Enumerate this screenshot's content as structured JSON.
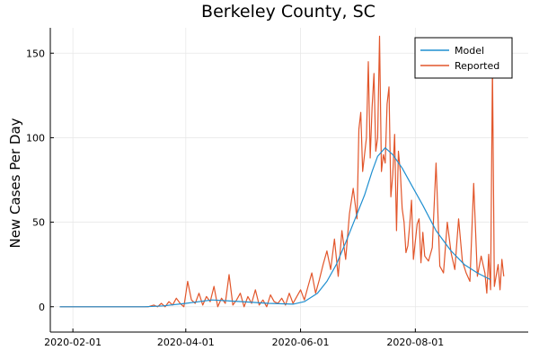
{
  "chart_data": {
    "type": "line",
    "title": "Berkeley County, SC",
    "xlabel": "",
    "ylabel": "New Cases Per Day",
    "x_tick_labels": [
      "2020-02-01",
      "2020-04-01",
      "2020-06-01",
      "2020-08-01"
    ],
    "x_tick_dates": [
      "2020-02-01",
      "2020-04-01",
      "2020-06-01",
      "2020-08-01"
    ],
    "y_ticks": [
      0,
      50,
      100,
      150
    ],
    "xlim": [
      "2020-01-20",
      "2020-09-30"
    ],
    "ylim": [
      -15,
      165
    ],
    "grid": true,
    "legend": {
      "position": "top-right",
      "entries": [
        "Model",
        "Reported"
      ]
    },
    "colors": {
      "Model": "#1f8fd0",
      "Reported": "#e2562b"
    },
    "series": [
      {
        "name": "Model",
        "x": [
          "2020-01-25",
          "2020-03-10",
          "2020-03-20",
          "2020-04-01",
          "2020-04-15",
          "2020-05-01",
          "2020-05-15",
          "2020-05-28",
          "2020-06-03",
          "2020-06-10",
          "2020-06-15",
          "2020-06-20",
          "2020-06-25",
          "2020-06-30",
          "2020-07-05",
          "2020-07-09",
          "2020-07-12",
          "2020-07-16",
          "2020-07-20",
          "2020-07-25",
          "2020-07-30",
          "2020-08-05",
          "2020-08-12",
          "2020-08-20",
          "2020-08-27",
          "2020-09-03",
          "2020-09-10"
        ],
        "y": [
          0,
          0,
          0.5,
          2,
          4,
          3,
          2,
          1.5,
          3,
          8,
          15,
          25,
          38,
          52,
          66,
          80,
          89,
          94,
          90,
          82,
          72,
          60,
          45,
          33,
          25,
          20,
          16
        ]
      },
      {
        "name": "Reported",
        "x": [
          "2020-01-25",
          "2020-03-12",
          "2020-03-15",
          "2020-03-17",
          "2020-03-19",
          "2020-03-21",
          "2020-03-23",
          "2020-03-25",
          "2020-03-27",
          "2020-03-29",
          "2020-03-31",
          "2020-04-02",
          "2020-04-04",
          "2020-04-06",
          "2020-04-08",
          "2020-04-10",
          "2020-04-12",
          "2020-04-14",
          "2020-04-16",
          "2020-04-18",
          "2020-04-20",
          "2020-04-22",
          "2020-04-24",
          "2020-04-26",
          "2020-04-28",
          "2020-04-30",
          "2020-05-02",
          "2020-05-04",
          "2020-05-06",
          "2020-05-08",
          "2020-05-10",
          "2020-05-12",
          "2020-05-14",
          "2020-05-16",
          "2020-05-18",
          "2020-05-20",
          "2020-05-22",
          "2020-05-24",
          "2020-05-26",
          "2020-05-28",
          "2020-05-30",
          "2020-06-01",
          "2020-06-03",
          "2020-06-05",
          "2020-06-07",
          "2020-06-09",
          "2020-06-11",
          "2020-06-13",
          "2020-06-15",
          "2020-06-17",
          "2020-06-19",
          "2020-06-21",
          "2020-06-23",
          "2020-06-25",
          "2020-06-27",
          "2020-06-29",
          "2020-07-01",
          "2020-07-02",
          "2020-07-03",
          "2020-07-04",
          "2020-07-06",
          "2020-07-07",
          "2020-07-08",
          "2020-07-09",
          "2020-07-10",
          "2020-07-11",
          "2020-07-12",
          "2020-07-13",
          "2020-07-14",
          "2020-07-15",
          "2020-07-16",
          "2020-07-17",
          "2020-07-18",
          "2020-07-19",
          "2020-07-20",
          "2020-07-21",
          "2020-07-22",
          "2020-07-23",
          "2020-07-24",
          "2020-07-25",
          "2020-07-26",
          "2020-07-27",
          "2020-07-28",
          "2020-07-29",
          "2020-07-30",
          "2020-07-31",
          "2020-08-02",
          "2020-08-03",
          "2020-08-04",
          "2020-08-05",
          "2020-08-06",
          "2020-08-08",
          "2020-08-10",
          "2020-08-12",
          "2020-08-14",
          "2020-08-16",
          "2020-08-18",
          "2020-08-20",
          "2020-08-22",
          "2020-08-24",
          "2020-08-26",
          "2020-08-28",
          "2020-08-30",
          "2020-09-01",
          "2020-09-03",
          "2020-09-05",
          "2020-09-07",
          "2020-09-08",
          "2020-09-09",
          "2020-09-10",
          "2020-09-11",
          "2020-09-12",
          "2020-09-14",
          "2020-09-15",
          "2020-09-16",
          "2020-09-17"
        ],
        "y": [
          0,
          0,
          1,
          0,
          2,
          0,
          3,
          1,
          5,
          2,
          0,
          15,
          4,
          2,
          8,
          1,
          6,
          3,
          12,
          0,
          5,
          2,
          19,
          1,
          4,
          8,
          0,
          6,
          2,
          10,
          1,
          4,
          0,
          7,
          3,
          2,
          5,
          1,
          8,
          2,
          6,
          10,
          4,
          12,
          20,
          8,
          16,
          25,
          33,
          22,
          40,
          18,
          45,
          28,
          55,
          70,
          52,
          105,
          115,
          80,
          100,
          145,
          88,
          118,
          138,
          92,
          100,
          160,
          80,
          90,
          85,
          120,
          130,
          65,
          78,
          102,
          45,
          92,
          80,
          58,
          50,
          32,
          36,
          48,
          63,
          28,
          49,
          52,
          26,
          44,
          30,
          27,
          35,
          85,
          24,
          20,
          50,
          32,
          22,
          52,
          27,
          20,
          15,
          73,
          18,
          30,
          20,
          8,
          31,
          10,
          142,
          12,
          25,
          10,
          28,
          18
        ]
      }
    ]
  }
}
